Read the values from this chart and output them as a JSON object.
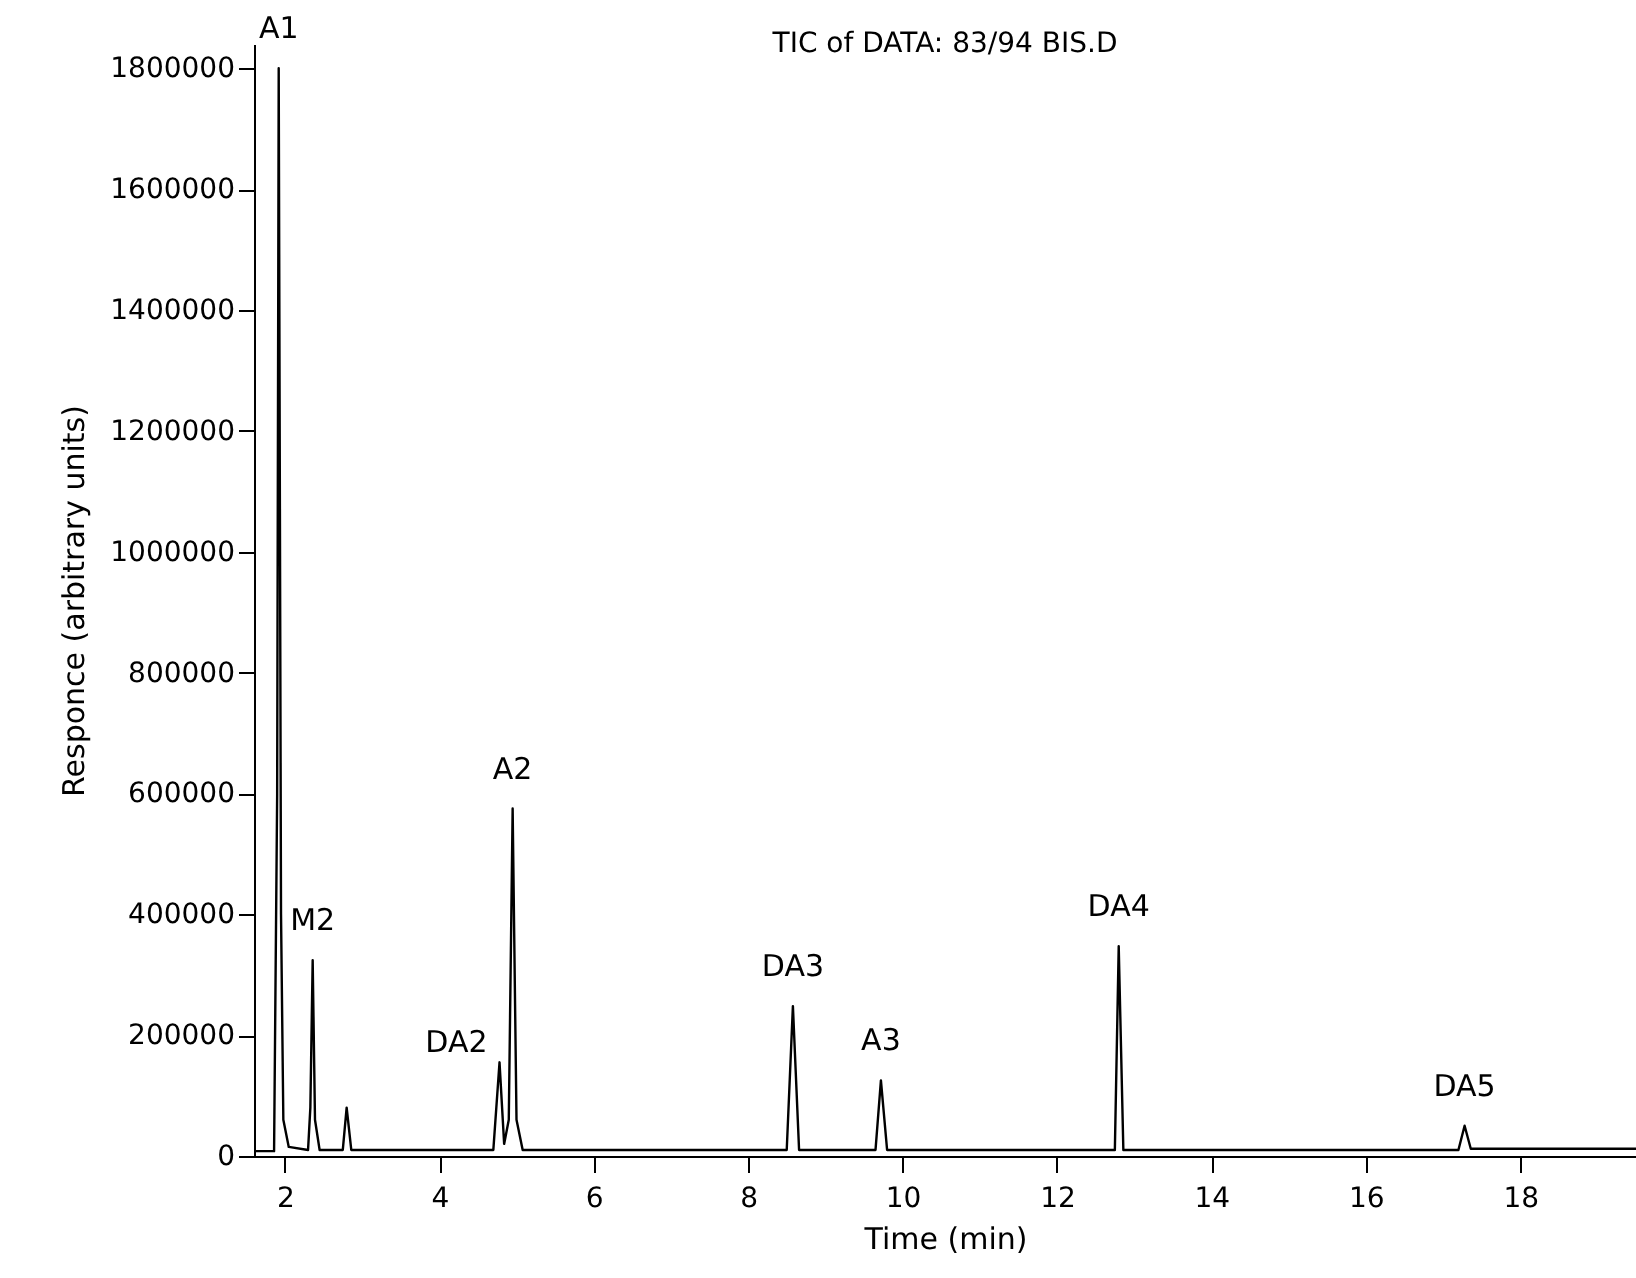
{
  "chart_data": {
    "type": "line",
    "title": "TIC of DATA: 83/94 BIS.D",
    "xlabel": "Time (min)",
    "ylabel": "Responce (arbitrary units)",
    "x": [
      1.62,
      1.86,
      1.9,
      1.92,
      1.95,
      1.98,
      2.05,
      2.3,
      2.33,
      2.36,
      2.39,
      2.45,
      2.75,
      2.8,
      2.86,
      4.7,
      4.78,
      4.84,
      4.9,
      4.95,
      5.0,
      5.08,
      8.5,
      8.58,
      8.66,
      9.65,
      9.72,
      9.8,
      12.75,
      12.8,
      12.86,
      17.2,
      17.28,
      17.36,
      19.5
    ],
    "series": [
      {
        "color": "#000000",
        "values": [
          8000,
          8000,
          600000,
          1800000,
          400000,
          60000,
          15000,
          10000,
          80000,
          324000,
          60000,
          10000,
          10000,
          80000,
          10000,
          10000,
          155000,
          20000,
          60000,
          575000,
          60000,
          10000,
          10000,
          248000,
          10000,
          10000,
          125000,
          10000,
          10000,
          347000,
          10000,
          10000,
          50000,
          12000,
          12000
        ]
      }
    ],
    "annotations": [
      {
        "text": "A1",
        "x": 1.92,
        "y": 1800000
      },
      {
        "text": "M2",
        "x": 2.36,
        "y": 324000
      },
      {
        "text": "DA2",
        "x": 4.78,
        "y": 155000
      },
      {
        "text": "A2",
        "x": 4.95,
        "y": 575000
      },
      {
        "text": "DA3",
        "x": 8.58,
        "y": 248000
      },
      {
        "text": "A3",
        "x": 9.72,
        "y": 125000
      },
      {
        "text": "DA4",
        "x": 12.8,
        "y": 347000
      },
      {
        "text": "DA5",
        "x": 17.28,
        "y": 50000
      }
    ],
    "xlim": [
      1.6,
      19.5
    ],
    "ylim": [
      0,
      1840000
    ],
    "xticks": [
      2,
      4,
      6,
      8,
      10,
      12,
      14,
      16,
      18
    ],
    "yticks": [
      0,
      200000,
      400000,
      600000,
      800000,
      1000000,
      1200000,
      1400000,
      1600000,
      1800000
    ],
    "grid": false,
    "marker": "none",
    "line_style": "solid"
  }
}
